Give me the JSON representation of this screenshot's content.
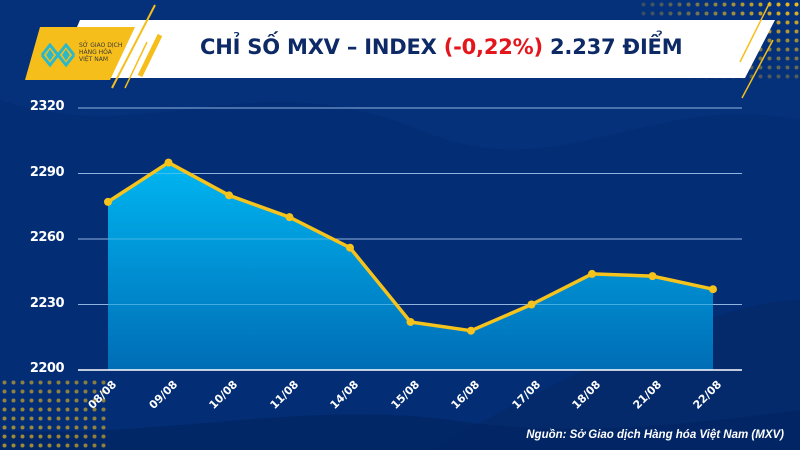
{
  "header": {
    "title_prefix": "CHỈ SỐ MXV – INDEX ",
    "change": "(-0,22%)",
    "title_suffix": " 2.237 ĐIỂM",
    "change_color": "#E3161B"
  },
  "logo": {
    "line1": "SỞ GIAO DỊCH",
    "line2": "HÀNG HÓA",
    "line3": "VIỆT NAM"
  },
  "yaxis": {
    "ticks": [
      "2320",
      "2290",
      "2260",
      "2230",
      "2200"
    ]
  },
  "xaxis": {
    "ticks": [
      "08/08",
      "09/08",
      "10/08",
      "11/08",
      "14/08",
      "15/08",
      "16/08",
      "17/08",
      "18/08",
      "21/08",
      "22/08"
    ]
  },
  "source": "Nguồn: Sở Giao dịch Hàng hóa Việt Nam (MXV)",
  "colors": {
    "background": "#032D74",
    "line": "#F5C31C",
    "fill_top": "#00B6F1",
    "fill_bottom": "#006DB6",
    "grid": "#8FB4E0",
    "banner_accent": "#F6BE1A"
  },
  "chart_data": {
    "type": "area",
    "title": "CHỈ SỐ MXV – INDEX (-0,22%) 2.237 ĐIỂM",
    "categories": [
      "08/08",
      "09/08",
      "10/08",
      "11/08",
      "14/08",
      "15/08",
      "16/08",
      "17/08",
      "18/08",
      "21/08",
      "22/08"
    ],
    "series": [
      {
        "name": "MXV-Index",
        "values": [
          2277,
          2295,
          2280,
          2270,
          2256,
          2222,
          2218,
          2230,
          2244,
          2243,
          2237
        ]
      }
    ],
    "xlabel": "",
    "ylabel": "",
    "ylim": [
      2200,
      2320
    ],
    "yticks": [
      2200,
      2230,
      2260,
      2290,
      2320
    ],
    "grid": true,
    "legend": "none",
    "annotations": [
      "Nguồn: Sở Giao dịch Hàng hóa Việt Nam (MXV)"
    ]
  }
}
